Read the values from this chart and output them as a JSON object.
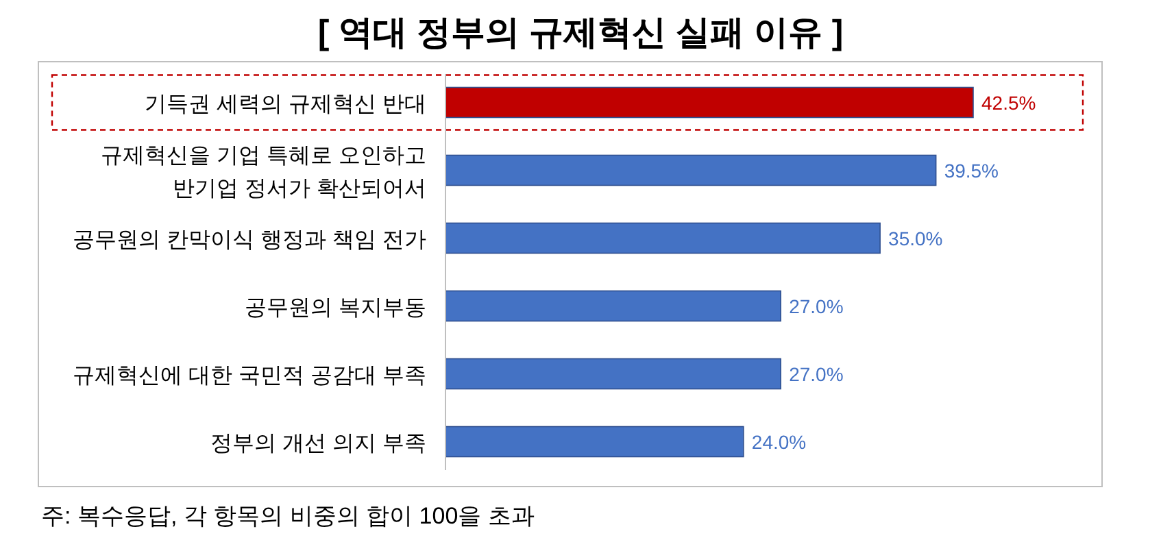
{
  "chart_data": {
    "type": "bar",
    "orientation": "horizontal",
    "title": "[ 역대 정부의 규제혁신 실패 이유 ]",
    "categories": [
      "기득권 세력의 규제혁신 반대",
      "규제혁신을 기업 특혜로 오인하고\n반기업 정서가 확산되어서",
      "공무원의 칸막이식 행정과 책임 전가",
      "공무원의 복지부동",
      "규제혁신에 대한 국민적 공감대 부족",
      "정부의 개선 의지 부족"
    ],
    "values": [
      42.5,
      39.5,
      35.0,
      27.0,
      27.0,
      24.0
    ],
    "value_labels": [
      "42.5%",
      "39.5%",
      "35.0%",
      "27.0%",
      "27.0%",
      "24.0%"
    ],
    "colors": [
      "#c00000",
      "#4472c4",
      "#4472c4",
      "#4472c4",
      "#4472c4",
      "#4472c4"
    ],
    "annotations": [
      "주: 복수응답, 각 항목의 비중의 합이 100을 초과"
    ]
  }
}
